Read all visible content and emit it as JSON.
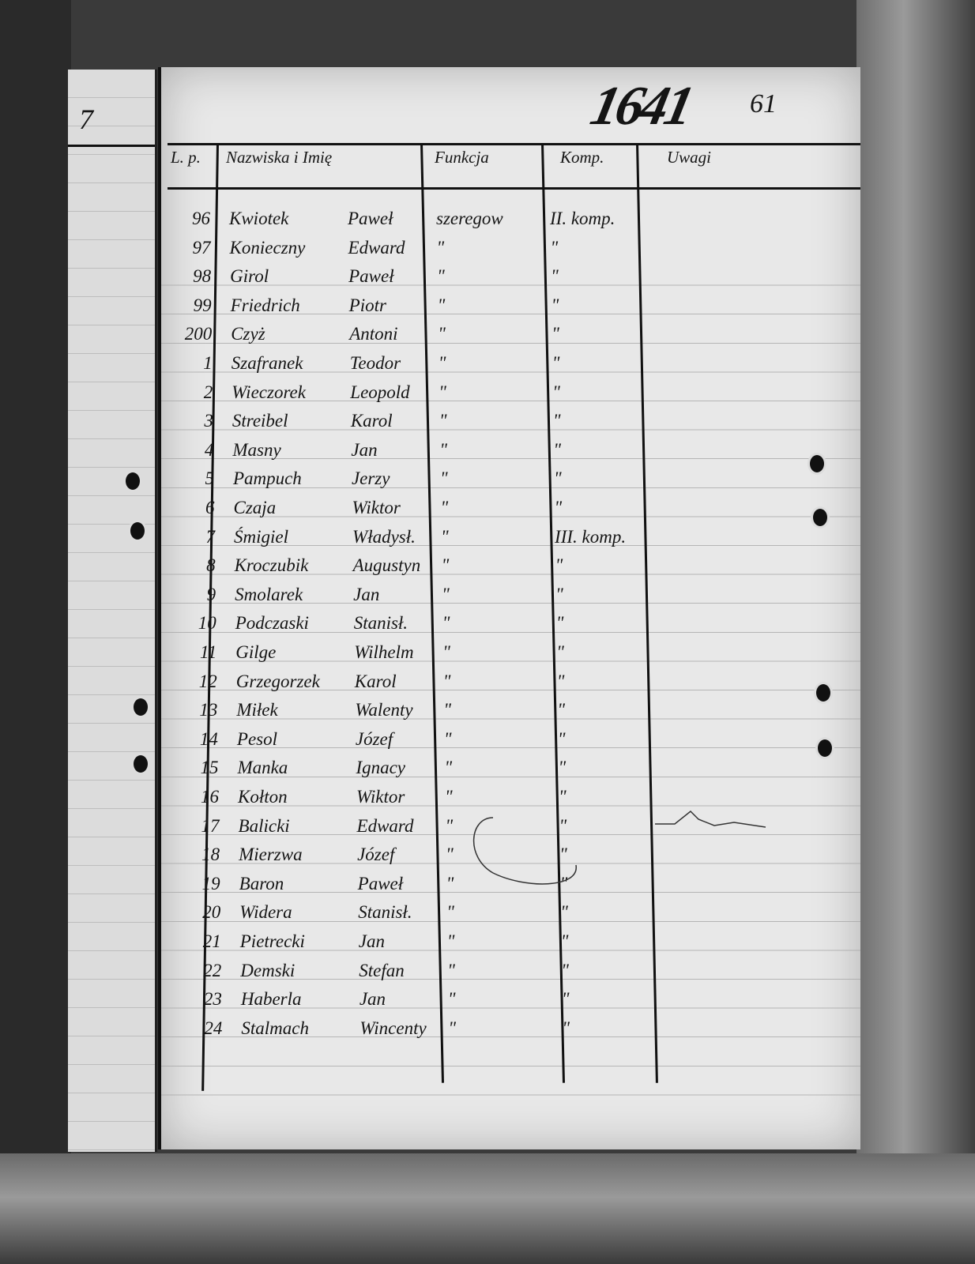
{
  "document": {
    "register_number": "1641",
    "page_number": "61",
    "previous_page_mark": "7",
    "columns": {
      "lp": "L. p.",
      "name": "Nazwiska i Imię",
      "function": "Funkcja",
      "company": "Komp.",
      "remarks": "Uwagi"
    },
    "rows": [
      {
        "lp": "96",
        "surname": "Kwiotek",
        "first_name": "Paweł",
        "function": "szeregow",
        "company": "II. komp."
      },
      {
        "lp": "97",
        "surname": "Konieczny",
        "first_name": "Edward",
        "function": "\"",
        "company": "\""
      },
      {
        "lp": "98",
        "surname": "Girol",
        "first_name": "Paweł",
        "function": "\"",
        "company": "\""
      },
      {
        "lp": "99",
        "surname": "Friedrich",
        "first_name": "Piotr",
        "function": "\"",
        "company": "\""
      },
      {
        "lp": "200",
        "surname": "Czyż",
        "first_name": "Antoni",
        "function": "\"",
        "company": "\""
      },
      {
        "lp": "1",
        "surname": "Szafranek",
        "first_name": "Teodor",
        "function": "\"",
        "company": "\""
      },
      {
        "lp": "2",
        "surname": "Wieczorek",
        "first_name": "Leopold",
        "function": "\"",
        "company": "\""
      },
      {
        "lp": "3",
        "surname": "Streibel",
        "first_name": "Karol",
        "function": "\"",
        "company": "\""
      },
      {
        "lp": "4",
        "surname": "Masny",
        "first_name": "Jan",
        "function": "\"",
        "company": "\""
      },
      {
        "lp": "5",
        "surname": "Pampuch",
        "first_name": "Jerzy",
        "function": "\"",
        "company": "\""
      },
      {
        "lp": "6",
        "surname": "Czaja",
        "first_name": "Wiktor",
        "function": "\"",
        "company": "\""
      },
      {
        "lp": "7",
        "surname": "Śmigiel",
        "first_name": "Władysł.",
        "function": "\"",
        "company": "III. komp."
      },
      {
        "lp": "8",
        "surname": "Kroczubik",
        "first_name": "Augustyn",
        "function": "\"",
        "company": "\""
      },
      {
        "lp": "9",
        "surname": "Smolarek",
        "first_name": "Jan",
        "function": "\"",
        "company": "\""
      },
      {
        "lp": "10",
        "surname": "Podczaski",
        "first_name": "Stanisł.",
        "function": "\"",
        "company": "\""
      },
      {
        "lp": "11",
        "surname": "Gilge",
        "first_name": "Wilhelm",
        "function": "\"",
        "company": "\""
      },
      {
        "lp": "12",
        "surname": "Grzegorzek",
        "first_name": "Karol",
        "function": "\"",
        "company": "\""
      },
      {
        "lp": "13",
        "surname": "Miłek",
        "first_name": "Walenty",
        "function": "\"",
        "company": "\""
      },
      {
        "lp": "14",
        "surname": "Pesol",
        "first_name": "Józef",
        "function": "\"",
        "company": "\""
      },
      {
        "lp": "15",
        "surname": "Manka",
        "first_name": "Ignacy",
        "function": "\"",
        "company": "\""
      },
      {
        "lp": "16",
        "surname": "Kołton",
        "first_name": "Wiktor",
        "function": "\"",
        "company": "\""
      },
      {
        "lp": "17",
        "surname": "Balicki",
        "first_name": "Edward",
        "function": "\"",
        "company": "\""
      },
      {
        "lp": "18",
        "surname": "Mierzwa",
        "first_name": "Józef",
        "function": "\"",
        "company": "\""
      },
      {
        "lp": "19",
        "surname": "Baron",
        "first_name": "Paweł",
        "function": "\"",
        "company": "\""
      },
      {
        "lp": "20",
        "surname": "Widera",
        "first_name": "Stanisł.",
        "function": "\"",
        "company": "\""
      },
      {
        "lp": "21",
        "surname": "Pietrecki",
        "first_name": "Jan",
        "function": "\"",
        "company": "\""
      },
      {
        "lp": "22",
        "surname": "Demski",
        "first_name": "Stefan",
        "function": "\"",
        "company": "\""
      },
      {
        "lp": "23",
        "surname": "Haberla",
        "first_name": "Jan",
        "function": "\"",
        "company": "\""
      },
      {
        "lp": "24",
        "surname": "Stalmach",
        "first_name": "Wincenty",
        "function": "\"",
        "company": "\""
      }
    ]
  }
}
